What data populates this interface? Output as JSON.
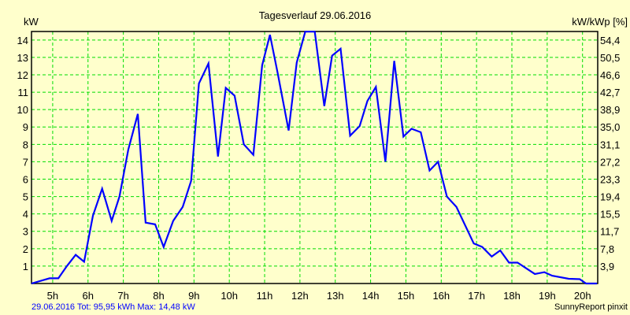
{
  "chart_data": {
    "type": "line",
    "title": "Tagesverlauf 29.06.2016",
    "ylabel_left": "kW",
    "ylabel_right": "kW/kWp [%]",
    "xlim": [
      4.4,
      20.43
    ],
    "ylim": [
      0,
      14.49
    ],
    "grid": true,
    "x_ticks": [
      5,
      6,
      7,
      8,
      9,
      10,
      11,
      12,
      13,
      14,
      15,
      16,
      17,
      18,
      19,
      20
    ],
    "x_tick_labels": [
      "5h",
      "6h",
      "7h",
      "8h",
      "9h",
      "10h",
      "11h",
      "12h",
      "13h",
      "14h",
      "15h",
      "16h",
      "17h",
      "18h",
      "19h",
      "20h"
    ],
    "y_ticks": [
      1,
      2,
      3,
      4,
      5,
      6,
      7,
      8,
      9,
      10,
      11,
      12,
      13,
      14
    ],
    "y_tick_labels": [
      "1",
      "2",
      "3",
      "4",
      "5",
      "6",
      "7",
      "8",
      "9",
      "10",
      "11",
      "12",
      "13",
      "14"
    ],
    "y_right_tick_labels": [
      "3,9",
      "7,8",
      "11,7",
      "15,5",
      "19,4",
      "23,3",
      "27,2",
      "31,1",
      "35,0",
      "38,9",
      "42,7",
      "46,6",
      "50,5",
      "54,4"
    ],
    "series": [
      {
        "name": "kW",
        "color": "#0000ff",
        "x": [
          4.4,
          4.91,
          5.16,
          5.4,
          5.65,
          5.89,
          6.14,
          6.4,
          6.67,
          6.89,
          7.14,
          7.41,
          7.63,
          7.9,
          8.14,
          8.41,
          8.68,
          8.92,
          9.14,
          9.41,
          9.68,
          9.9,
          10.15,
          10.41,
          10.68,
          10.93,
          11.15,
          11.37,
          11.68,
          11.91,
          12.15,
          12.42,
          12.69,
          12.91,
          13.15,
          13.42,
          13.69,
          13.91,
          14.15,
          14.42,
          14.67,
          14.93,
          15.16,
          15.42,
          15.67,
          15.91,
          16.16,
          16.43,
          16.92,
          17.16,
          17.43,
          17.67,
          17.92,
          18.16,
          18.65,
          18.92,
          19.14,
          19.61,
          19.92,
          20.1,
          20.41
        ],
        "y": [
          0.0,
          0.3,
          0.3,
          1.0,
          1.65,
          1.25,
          3.9,
          5.45,
          3.6,
          5.0,
          7.7,
          9.75,
          3.5,
          3.4,
          2.1,
          3.6,
          4.4,
          5.9,
          11.5,
          12.65,
          7.3,
          11.25,
          10.8,
          8.0,
          7.4,
          12.55,
          14.3,
          12.1,
          8.8,
          12.7,
          14.48,
          14.48,
          10.2,
          13.1,
          13.5,
          8.5,
          9.05,
          10.5,
          11.3,
          7.0,
          12.8,
          8.45,
          8.9,
          8.7,
          6.5,
          7.0,
          5.0,
          4.4,
          2.3,
          2.1,
          1.55,
          1.9,
          1.2,
          1.2,
          0.55,
          0.65,
          0.45,
          0.27,
          0.25,
          0.0,
          0.0
        ]
      }
    ],
    "footer_left": "29.06.2016 Tot: 95,95 kWh Max: 14,48 kW",
    "footer_right": "SunnyReport pinxit"
  }
}
